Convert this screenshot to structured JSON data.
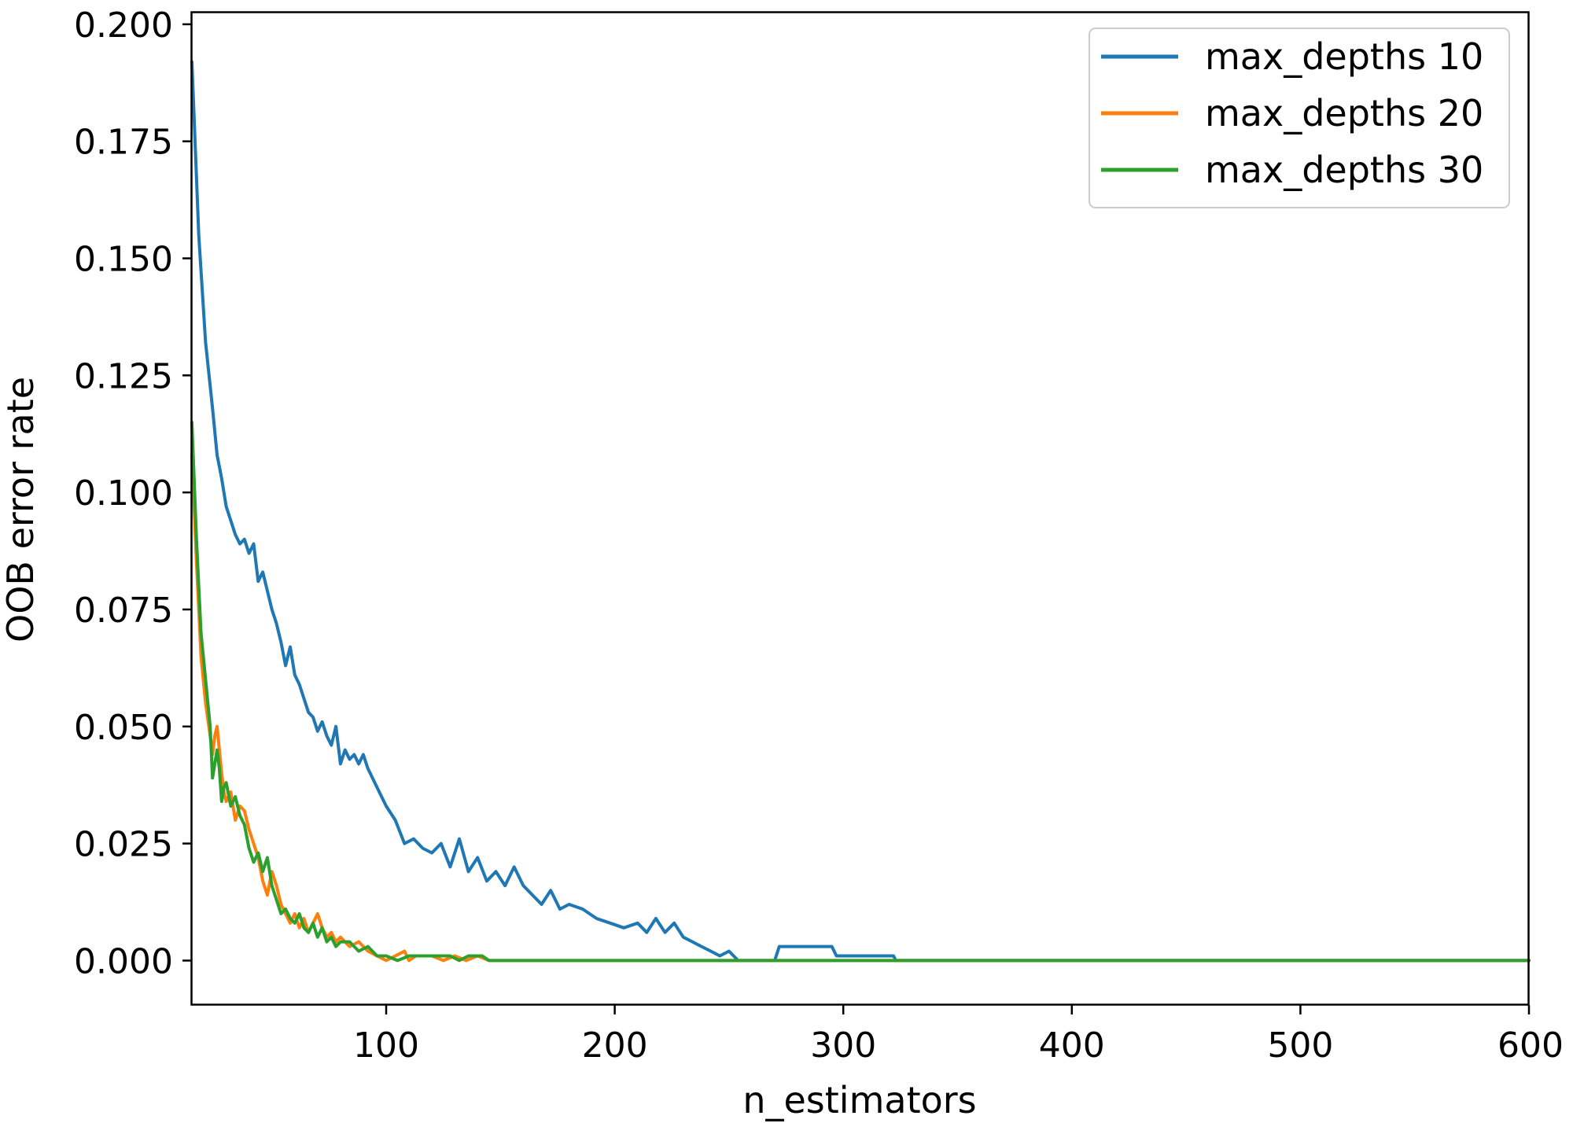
{
  "chart_data": {
    "type": "line",
    "title": "",
    "xlabel": "n_estimators",
    "ylabel": "OOB error rate",
    "xlim": [
      15,
      600
    ],
    "ylim": [
      -0.0095,
      0.2025
    ],
    "xticks": [
      100,
      200,
      300,
      400,
      500,
      600
    ],
    "xtick_labels": [
      "100",
      "200",
      "300",
      "400",
      "500",
      "600"
    ],
    "yticks": [
      0.0,
      0.025,
      0.05,
      0.075,
      0.1,
      0.125,
      0.15,
      0.175,
      0.2
    ],
    "ytick_labels": [
      "0.000",
      "0.025",
      "0.050",
      "0.075",
      "0.100",
      "0.125",
      "0.150",
      "0.175",
      "0.200"
    ],
    "grid": false,
    "legend_position": "top-right",
    "series": [
      {
        "name": "max_depths 10",
        "color": "#1f77b4",
        "points": [
          [
            15,
            0.192
          ],
          [
            18,
            0.155
          ],
          [
            21,
            0.132
          ],
          [
            24,
            0.118
          ],
          [
            26,
            0.108
          ],
          [
            28,
            0.103
          ],
          [
            30,
            0.097
          ],
          [
            32,
            0.094
          ],
          [
            34,
            0.091
          ],
          [
            36,
            0.089
          ],
          [
            38,
            0.09
          ],
          [
            40,
            0.087
          ],
          [
            42,
            0.089
          ],
          [
            44,
            0.081
          ],
          [
            46,
            0.083
          ],
          [
            48,
            0.079
          ],
          [
            50,
            0.075
          ],
          [
            52,
            0.072
          ],
          [
            54,
            0.068
          ],
          [
            56,
            0.063
          ],
          [
            58,
            0.067
          ],
          [
            60,
            0.061
          ],
          [
            62,
            0.059
          ],
          [
            64,
            0.056
          ],
          [
            66,
            0.053
          ],
          [
            68,
            0.052
          ],
          [
            70,
            0.049
          ],
          [
            72,
            0.051
          ],
          [
            74,
            0.048
          ],
          [
            76,
            0.046
          ],
          [
            78,
            0.05
          ],
          [
            80,
            0.042
          ],
          [
            82,
            0.045
          ],
          [
            84,
            0.043
          ],
          [
            86,
            0.044
          ],
          [
            88,
            0.042
          ],
          [
            90,
            0.044
          ],
          [
            92,
            0.041
          ],
          [
            94,
            0.039
          ],
          [
            96,
            0.037
          ],
          [
            100,
            0.033
          ],
          [
            104,
            0.03
          ],
          [
            108,
            0.025
          ],
          [
            112,
            0.026
          ],
          [
            116,
            0.024
          ],
          [
            120,
            0.023
          ],
          [
            124,
            0.025
          ],
          [
            128,
            0.02
          ],
          [
            132,
            0.026
          ],
          [
            136,
            0.019
          ],
          [
            140,
            0.022
          ],
          [
            144,
            0.017
          ],
          [
            148,
            0.019
          ],
          [
            152,
            0.016
          ],
          [
            156,
            0.02
          ],
          [
            160,
            0.016
          ],
          [
            164,
            0.014
          ],
          [
            168,
            0.012
          ],
          [
            172,
            0.015
          ],
          [
            176,
            0.011
          ],
          [
            180,
            0.012
          ],
          [
            186,
            0.011
          ],
          [
            192,
            0.009
          ],
          [
            198,
            0.008
          ],
          [
            204,
            0.007
          ],
          [
            210,
            0.008
          ],
          [
            214,
            0.006
          ],
          [
            218,
            0.009
          ],
          [
            222,
            0.006
          ],
          [
            226,
            0.008
          ],
          [
            230,
            0.005
          ],
          [
            234,
            0.004
          ],
          [
            238,
            0.003
          ],
          [
            242,
            0.002
          ],
          [
            246,
            0.001
          ],
          [
            250,
            0.002
          ],
          [
            254,
            0.0
          ],
          [
            270,
            0.0
          ],
          [
            272,
            0.003
          ],
          [
            295,
            0.003
          ],
          [
            297,
            0.001
          ],
          [
            322,
            0.001
          ],
          [
            323,
            0.0
          ],
          [
            600,
            0.0
          ]
        ]
      },
      {
        "name": "max_depths 20",
        "color": "#ff7f0e",
        "points": [
          [
            15,
            0.108
          ],
          [
            17,
            0.085
          ],
          [
            19,
            0.065
          ],
          [
            21,
            0.055
          ],
          [
            23,
            0.048
          ],
          [
            24,
            0.044
          ],
          [
            25,
            0.048
          ],
          [
            26,
            0.05
          ],
          [
            27,
            0.045
          ],
          [
            28,
            0.04
          ],
          [
            29,
            0.036
          ],
          [
            30,
            0.034
          ],
          [
            32,
            0.036
          ],
          [
            34,
            0.03
          ],
          [
            36,
            0.033
          ],
          [
            38,
            0.032
          ],
          [
            40,
            0.028
          ],
          [
            42,
            0.025
          ],
          [
            44,
            0.022
          ],
          [
            46,
            0.017
          ],
          [
            48,
            0.014
          ],
          [
            50,
            0.019
          ],
          [
            52,
            0.016
          ],
          [
            54,
            0.012
          ],
          [
            56,
            0.01
          ],
          [
            58,
            0.008
          ],
          [
            60,
            0.01
          ],
          [
            62,
            0.007
          ],
          [
            64,
            0.009
          ],
          [
            66,
            0.006
          ],
          [
            68,
            0.008
          ],
          [
            70,
            0.01
          ],
          [
            72,
            0.007
          ],
          [
            74,
            0.005
          ],
          [
            76,
            0.006
          ],
          [
            78,
            0.004
          ],
          [
            80,
            0.005
          ],
          [
            84,
            0.003
          ],
          [
            88,
            0.004
          ],
          [
            92,
            0.002
          ],
          [
            96,
            0.001
          ],
          [
            100,
            0.0
          ],
          [
            104,
            0.001
          ],
          [
            108,
            0.002
          ],
          [
            110,
            0.0
          ],
          [
            113,
            0.001
          ],
          [
            120,
            0.001
          ],
          [
            125,
            0.0
          ],
          [
            130,
            0.001
          ],
          [
            135,
            0.0
          ],
          [
            140,
            0.001
          ],
          [
            145,
            0.0
          ],
          [
            600,
            0.0
          ]
        ]
      },
      {
        "name": "max_depths 30",
        "color": "#2ca02c",
        "points": [
          [
            15,
            0.115
          ],
          [
            17,
            0.09
          ],
          [
            19,
            0.07
          ],
          [
            21,
            0.06
          ],
          [
            23,
            0.05
          ],
          [
            24,
            0.039
          ],
          [
            25,
            0.042
          ],
          [
            26,
            0.045
          ],
          [
            27,
            0.041
          ],
          [
            28,
            0.034
          ],
          [
            29,
            0.037
          ],
          [
            30,
            0.038
          ],
          [
            32,
            0.033
          ],
          [
            34,
            0.035
          ],
          [
            36,
            0.031
          ],
          [
            38,
            0.029
          ],
          [
            40,
            0.024
          ],
          [
            42,
            0.021
          ],
          [
            44,
            0.023
          ],
          [
            46,
            0.019
          ],
          [
            48,
            0.022
          ],
          [
            50,
            0.016
          ],
          [
            52,
            0.013
          ],
          [
            54,
            0.01
          ],
          [
            56,
            0.011
          ],
          [
            58,
            0.009
          ],
          [
            60,
            0.008
          ],
          [
            62,
            0.01
          ],
          [
            64,
            0.007
          ],
          [
            66,
            0.006
          ],
          [
            68,
            0.008
          ],
          [
            70,
            0.005
          ],
          [
            72,
            0.007
          ],
          [
            74,
            0.004
          ],
          [
            76,
            0.005
          ],
          [
            78,
            0.003
          ],
          [
            80,
            0.004
          ],
          [
            84,
            0.004
          ],
          [
            88,
            0.002
          ],
          [
            92,
            0.003
          ],
          [
            96,
            0.001
          ],
          [
            100,
            0.001
          ],
          [
            105,
            0.0
          ],
          [
            110,
            0.001
          ],
          [
            120,
            0.001
          ],
          [
            128,
            0.001
          ],
          [
            132,
            0.0
          ],
          [
            136,
            0.001
          ],
          [
            142,
            0.001
          ],
          [
            145,
            0.0
          ],
          [
            600,
            0.0
          ]
        ]
      }
    ]
  }
}
